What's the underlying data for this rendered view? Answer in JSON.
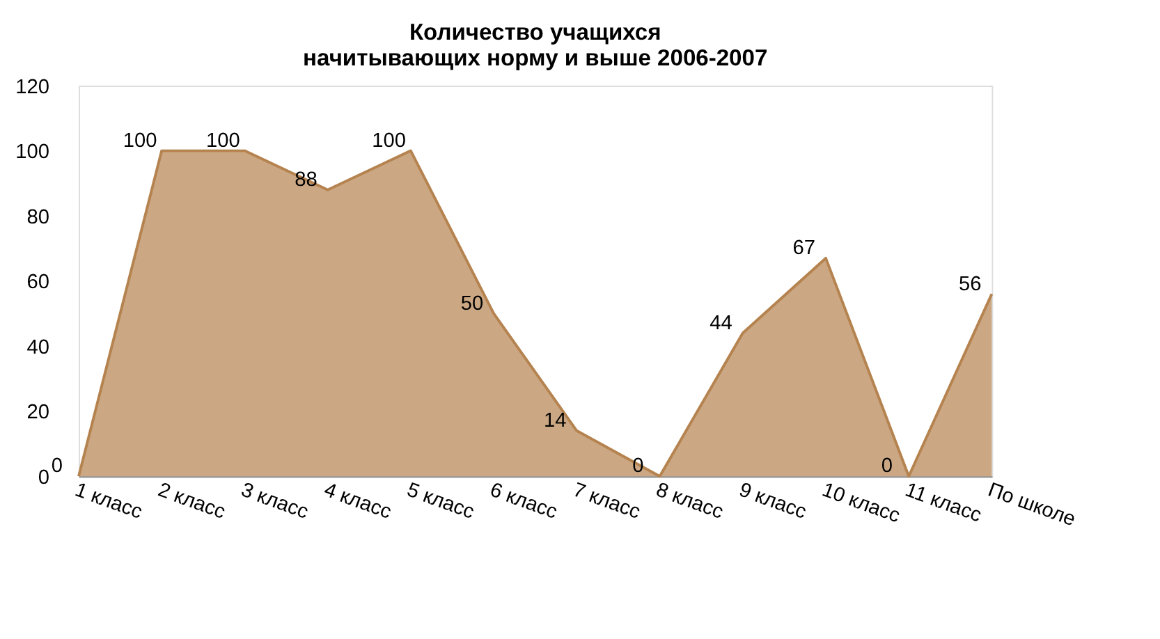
{
  "chart_data": {
    "type": "area",
    "title": "Количество  учащихся\nначитывающих норму и выше  2006-2007",
    "categories": [
      "1 класс",
      "2 класс",
      "3 класс",
      "4 класс",
      "5 класс",
      "6 класс",
      "7 класс",
      "8 класс",
      "9 класс",
      "10 класс",
      "11 класс",
      "По школе"
    ],
    "series": [
      {
        "color": "#b5834f",
        "values": [
          0,
          100,
          100,
          88,
          100,
          50,
          14,
          0,
          44,
          67,
          0,
          56
        ]
      }
    ],
    "ylim": [
      0,
      120
    ],
    "yticks": [
      0,
      20,
      40,
      60,
      80,
      100,
      120
    ],
    "grid": false,
    "data_labels": true
  }
}
